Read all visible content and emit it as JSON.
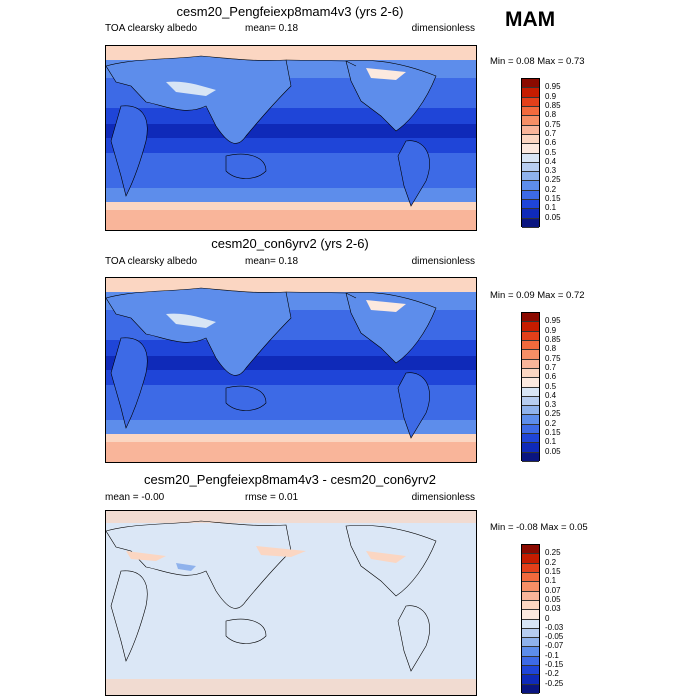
{
  "season": "MAM",
  "panels": [
    {
      "title": "cesm20_Pengfeiexp8mam4v3 (yrs 2-6)",
      "left": "TOA clearsky albedo",
      "mid": "mean=   0.18",
      "right": "dimensionless",
      "minmax": "Min =   0.08 Max =   0.73",
      "levels": [
        "0.95",
        "0.9",
        "0.85",
        "0.8",
        "0.75",
        "0.7",
        "0.6",
        "0.5",
        "0.4",
        "0.3",
        "0.25",
        "0.2",
        "0.15",
        "0.1",
        "0.05"
      ],
      "colors": [
        "#8b0a00",
        "#c51c00",
        "#e3401a",
        "#f26a3d",
        "#f68f66",
        "#f9b59a",
        "#fbd6c2",
        "#fce9df",
        "#d8e5f5",
        "#b7cdf0",
        "#8fb2ec",
        "#5d8deb",
        "#3d6ae6",
        "#1f45d8",
        "#0f2ab9",
        "#0a1580"
      ]
    },
    {
      "title": "cesm20_con6yrv2 (yrs 2-6)",
      "left": "TOA clearsky albedo",
      "mid": "mean=   0.18",
      "right": "dimensionless",
      "minmax": "Min =   0.09 Max =   0.72",
      "levels": [
        "0.95",
        "0.9",
        "0.85",
        "0.8",
        "0.75",
        "0.7",
        "0.6",
        "0.5",
        "0.4",
        "0.3",
        "0.25",
        "0.2",
        "0.15",
        "0.1",
        "0.05"
      ],
      "colors": [
        "#8b0a00",
        "#c51c00",
        "#e3401a",
        "#f26a3d",
        "#f68f66",
        "#f9b59a",
        "#fbd6c2",
        "#fce9df",
        "#d8e5f5",
        "#b7cdf0",
        "#8fb2ec",
        "#5d8deb",
        "#3d6ae6",
        "#1f45d8",
        "#0f2ab9",
        "#0a1580"
      ]
    },
    {
      "title": "cesm20_Pengfeiexp8mam4v3 - cesm20_con6yrv2",
      "left": "mean =  -0.00",
      "mid": "rmse =   0.01",
      "right": "dimensionless",
      "minmax": "Min =  -0.08 Max =   0.05",
      "levels": [
        "0.25",
        "0.2",
        "0.15",
        "0.1",
        "0.07",
        "0.05",
        "0.03",
        "0",
        "-0.03",
        "-0.05",
        "-0.07",
        "-0.1",
        "-0.15",
        "-0.2",
        "-0.25"
      ],
      "colors": [
        "#8b0a00",
        "#c51c00",
        "#e3401a",
        "#f26a3d",
        "#f68f66",
        "#f9b59a",
        "#fbd6c2",
        "#fce9df",
        "#d8e5f5",
        "#b7cdf0",
        "#8fb2ec",
        "#5d8deb",
        "#3d6ae6",
        "#1f45d8",
        "#0f2ab9",
        "#0a1580"
      ]
    }
  ],
  "map_colors": {
    "ocean_deep": "#1f45d8",
    "ocean_mid": "#3d6ae6",
    "ocean_shallow": "#5d8deb",
    "land_light": "#8fb2ec",
    "snow": "#fbd6c2",
    "ice": "#f9b59a",
    "diff_bg": "#dbe7f6",
    "diff_pos": "#fbd6c2",
    "diff_neg": "#8fb2ec"
  }
}
